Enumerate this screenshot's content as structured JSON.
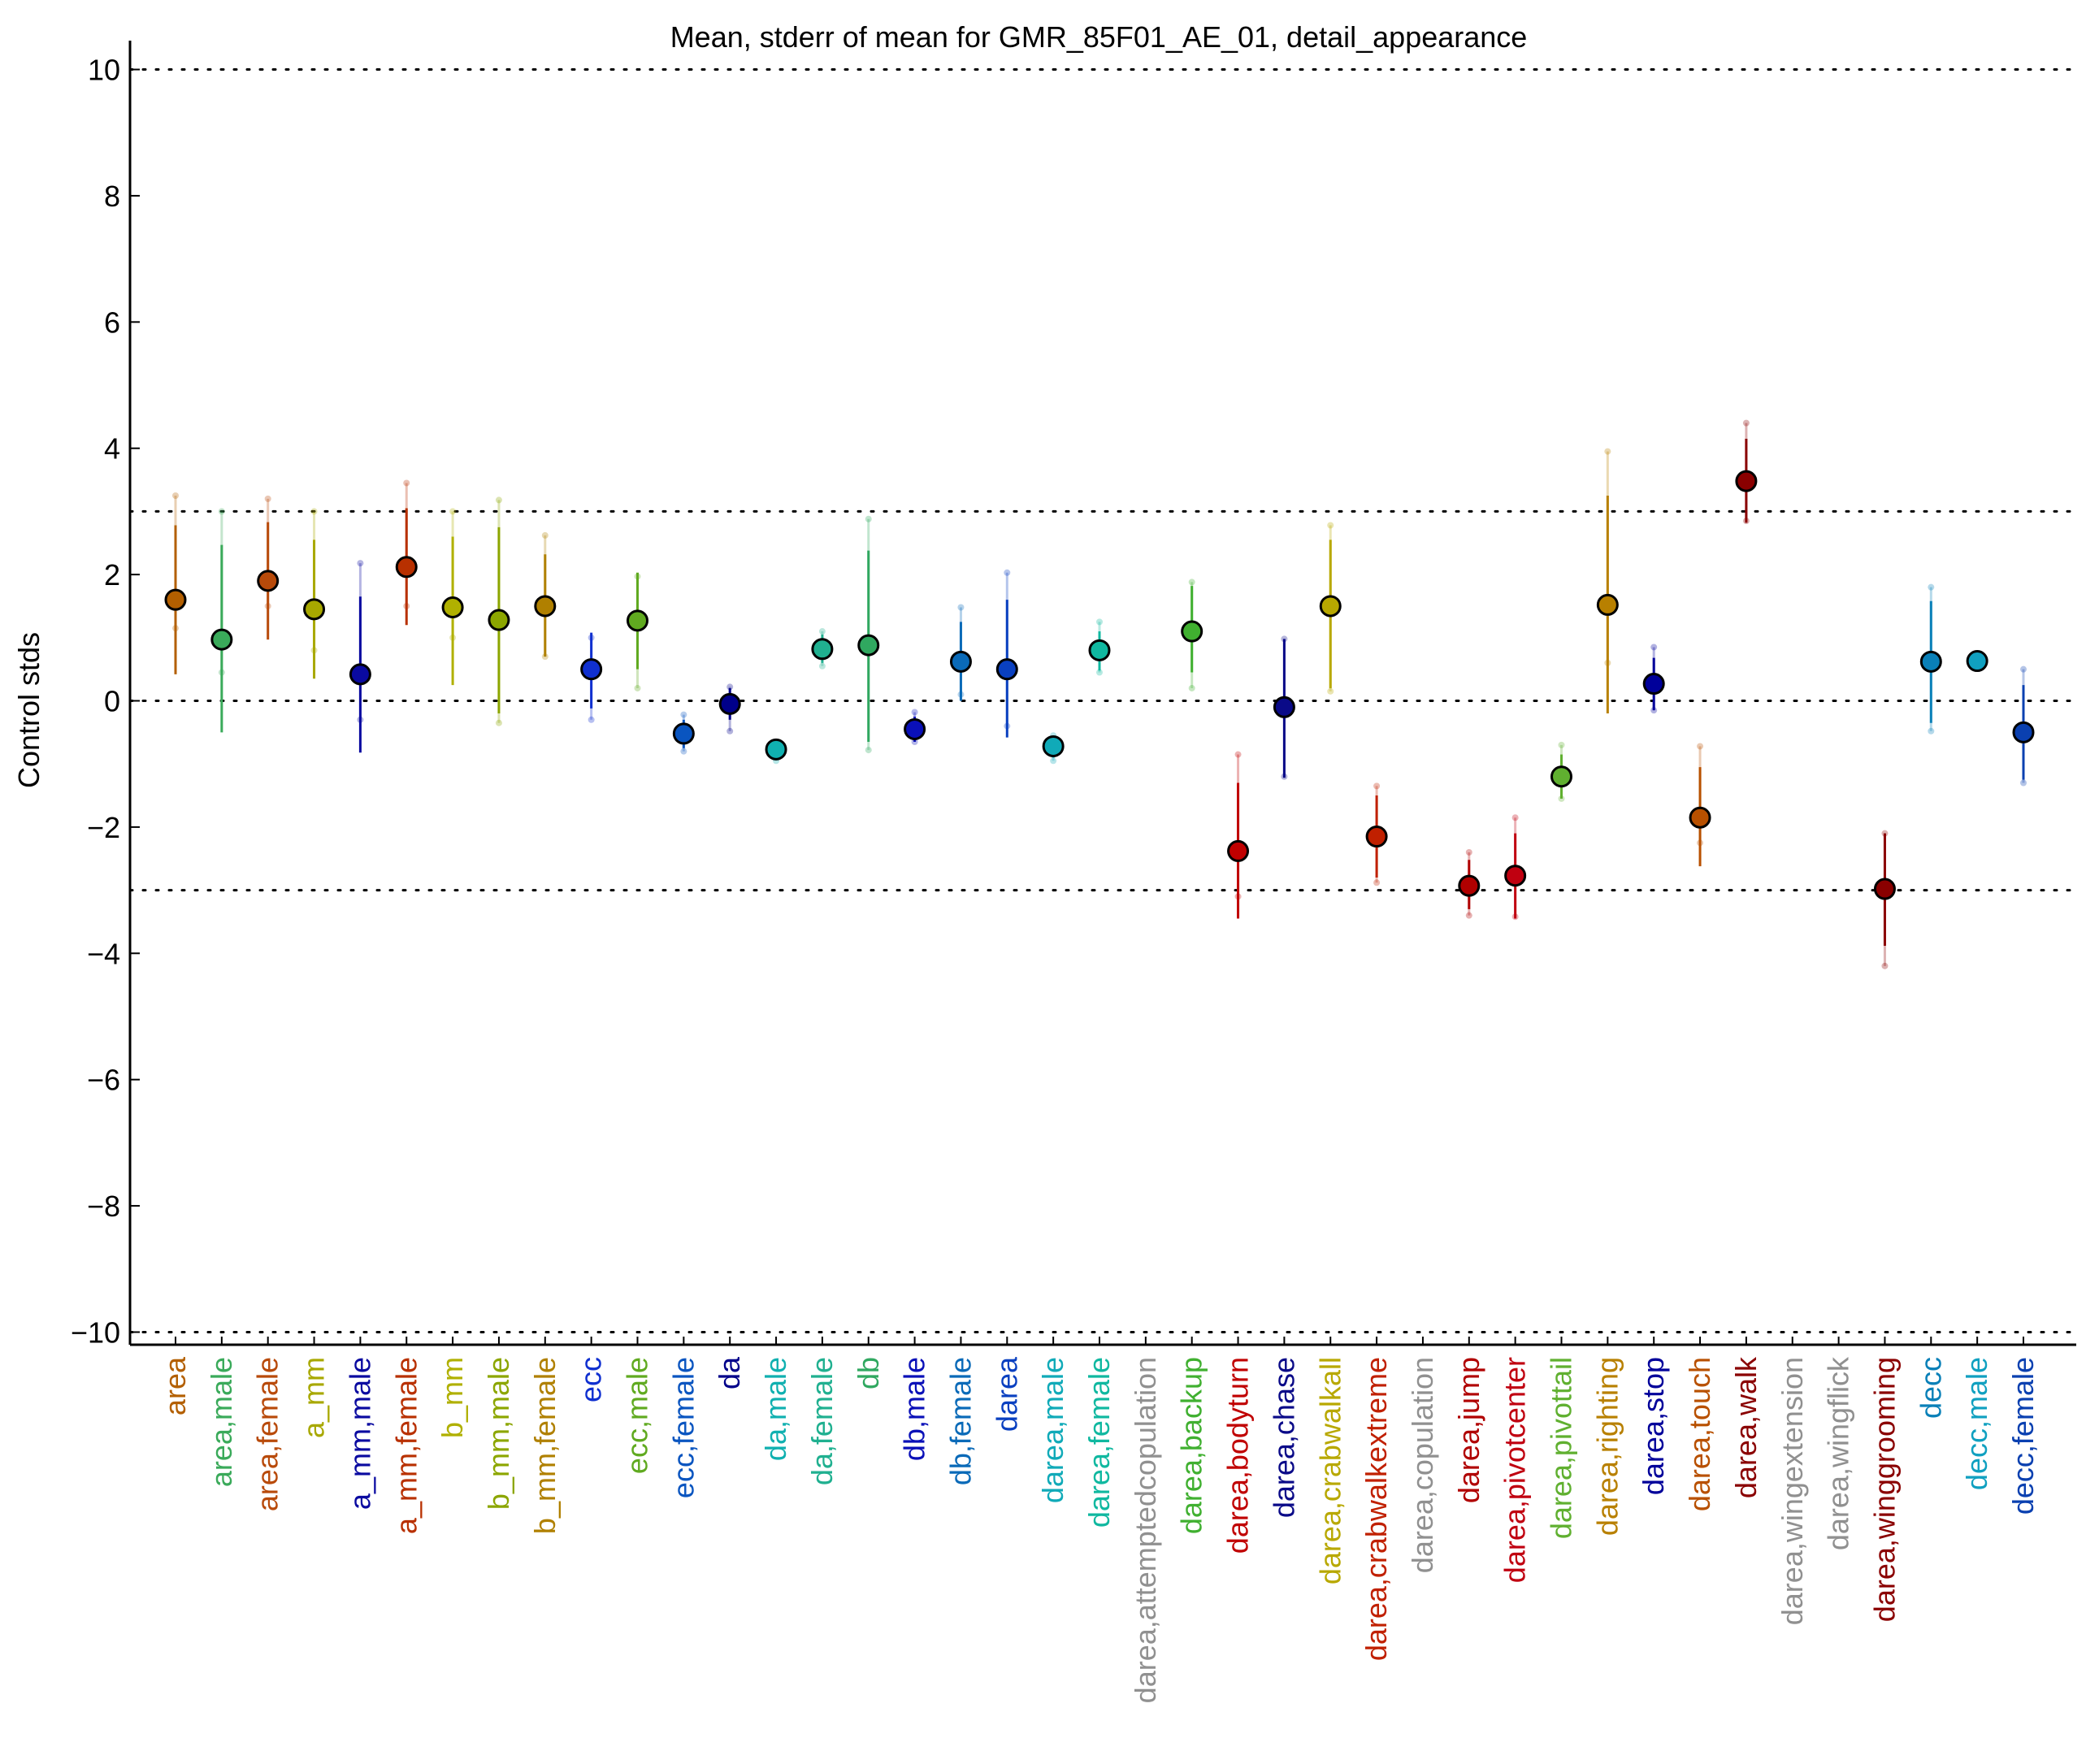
{
  "chart_data": {
    "type": "scatter",
    "title": "Mean, stderr of mean for GMR_85F01_AE_01, detail_appearance",
    "xlabel": "",
    "ylabel": "Control stds",
    "ylim": [
      -10.2,
      10.2
    ],
    "yticks": [
      10,
      8,
      6,
      4,
      2,
      0,
      -2,
      -4,
      -6,
      -8,
      -10
    ],
    "ytick_labels": [
      "10",
      "8",
      "6",
      "4",
      "2",
      "0",
      "−2",
      "−4",
      "−6",
      "−8",
      "−10"
    ],
    "reference_lines": [
      10,
      3,
      0,
      -3,
      -10
    ],
    "grid": false,
    "legend": "none",
    "error_bars": "stderr of mean",
    "categories": [
      {
        "label": "area",
        "color": "#b35f00",
        "mean": 1.6,
        "err_low": 0.42,
        "err_high": 2.78,
        "extra_low": 1.15,
        "extra_high": 3.25
      },
      {
        "label": "area,male",
        "color": "#3aaa5a",
        "mean": 0.97,
        "err_low": -0.5,
        "err_high": 2.47,
        "extra_low": 0.45,
        "extra_high": 3.0
      },
      {
        "label": "area,female",
        "color": "#b84a0a",
        "mean": 1.9,
        "err_low": 0.97,
        "err_high": 2.83,
        "extra_low": 1.5,
        "extra_high": 3.2
      },
      {
        "label": "a_mm",
        "color": "#a8a800",
        "mean": 1.45,
        "err_low": 0.35,
        "err_high": 2.55,
        "extra_low": 0.8,
        "extra_high": 3.0
      },
      {
        "label": "a_mm,male",
        "color": "#0a0aa0",
        "mean": 0.42,
        "err_low": -0.82,
        "err_high": 1.65,
        "extra_low": -0.3,
        "extra_high": 2.18
      },
      {
        "label": "a_mm,female",
        "color": "#b83000",
        "mean": 2.12,
        "err_low": 1.2,
        "err_high": 3.05,
        "extra_low": 1.5,
        "extra_high": 3.45
      },
      {
        "label": "b_mm",
        "color": "#b0b000",
        "mean": 1.48,
        "err_low": 0.25,
        "err_high": 2.6,
        "extra_low": 1.0,
        "extra_high": 3.0
      },
      {
        "label": "b_mm,male",
        "color": "#8ca600",
        "mean": 1.28,
        "err_low": -0.2,
        "err_high": 2.75,
        "extra_low": -0.35,
        "extra_high": 3.18
      },
      {
        "label": "b_mm,female",
        "color": "#b08000",
        "mean": 1.5,
        "err_low": 0.7,
        "err_high": 2.32,
        "extra_low": 0.7,
        "extra_high": 2.62
      },
      {
        "label": "ecc",
        "color": "#1030d0",
        "mean": 0.5,
        "err_low": -0.12,
        "err_high": 1.08,
        "extra_low": -0.3,
        "extra_high": 1.0
      },
      {
        "label": "ecc,male",
        "color": "#60aa20",
        "mean": 1.27,
        "err_low": 0.5,
        "err_high": 2.03,
        "extra_low": 0.2,
        "extra_high": 1.97
      },
      {
        "label": "ecc,female",
        "color": "#0a55c0",
        "mean": -0.52,
        "err_low": -0.75,
        "err_high": -0.3,
        "extra_low": -0.8,
        "extra_high": -0.22
      },
      {
        "label": "da",
        "color": "#00008a",
        "mean": -0.05,
        "err_low": -0.3,
        "err_high": 0.2,
        "extra_low": -0.48,
        "extra_high": 0.22
      },
      {
        "label": "da,male",
        "color": "#10b0b0",
        "mean": -0.77,
        "err_low": -0.85,
        "err_high": -0.7,
        "extra_low": -0.95,
        "extra_high": -0.65
      },
      {
        "label": "da,female",
        "color": "#20b090",
        "mean": 0.82,
        "err_low": 0.6,
        "err_high": 1.05,
        "extra_low": 0.55,
        "extra_high": 1.1
      },
      {
        "label": "db",
        "color": "#30a860",
        "mean": 0.88,
        "err_low": -0.65,
        "err_high": 2.38,
        "extra_low": -0.78,
        "extra_high": 2.88
      },
      {
        "label": "db,male",
        "color": "#0a10b8",
        "mean": -0.45,
        "err_low": -0.65,
        "err_high": -0.25,
        "extra_low": -0.65,
        "extra_high": -0.18
      },
      {
        "label": "db,female",
        "color": "#0a6ab8",
        "mean": 0.62,
        "err_low": 0.0,
        "err_high": 1.25,
        "extra_low": 0.1,
        "extra_high": 1.48
      },
      {
        "label": "darea",
        "color": "#0a40c0",
        "mean": 0.5,
        "err_low": -0.58,
        "err_high": 1.6,
        "extra_low": -0.4,
        "extra_high": 2.03
      },
      {
        "label": "darea,male",
        "color": "#10aab8",
        "mean": -0.72,
        "err_low": -0.9,
        "err_high": -0.55,
        "extra_low": -0.95,
        "extra_high": -0.55
      },
      {
        "label": "darea,female",
        "color": "#10b8a0",
        "mean": 0.8,
        "err_low": 0.48,
        "err_high": 1.1,
        "extra_low": 0.45,
        "extra_high": 1.25
      },
      {
        "label": "darea,attemptedcopulation",
        "color": "#909090",
        "mean": null,
        "err_low": null,
        "err_high": null,
        "extra_low": null,
        "extra_high": null
      },
      {
        "label": "darea,backup",
        "color": "#40b030",
        "mean": 1.1,
        "err_low": 0.45,
        "err_high": 1.82,
        "extra_low": 0.2,
        "extra_high": 1.88
      },
      {
        "label": "darea,bodyturn",
        "color": "#c00000",
        "mean": -2.38,
        "err_low": -3.45,
        "err_high": -1.3,
        "extra_low": -3.1,
        "extra_high": -0.85
      },
      {
        "label": "darea,chase",
        "color": "#0a0a88",
        "mean": -0.1,
        "err_low": -1.22,
        "err_high": 0.98,
        "extra_low": -1.2,
        "extra_high": 0.98
      },
      {
        "label": "darea,crabwalkall",
        "color": "#b8a800",
        "mean": 1.5,
        "err_low": 0.2,
        "err_high": 2.55,
        "extra_low": 0.15,
        "extra_high": 2.78
      },
      {
        "label": "darea,crabwalkextreme",
        "color": "#c02000",
        "mean": -2.15,
        "err_low": -2.8,
        "err_high": -1.5,
        "extra_low": -2.88,
        "extra_high": -1.35
      },
      {
        "label": "darea,copulation",
        "color": "#909090",
        "mean": null,
        "err_low": null,
        "err_high": null,
        "extra_low": null,
        "extra_high": null
      },
      {
        "label": "darea,jump",
        "color": "#b00000",
        "mean": -2.93,
        "err_low": -3.3,
        "err_high": -2.52,
        "extra_low": -3.4,
        "extra_high": -2.4
      },
      {
        "label": "darea,pivotcenter",
        "color": "#c00010",
        "mean": -2.77,
        "err_low": -3.45,
        "err_high": -2.1,
        "extra_low": -3.42,
        "extra_high": -1.85
      },
      {
        "label": "darea,pivottail",
        "color": "#60b030",
        "mean": -1.2,
        "err_low": -1.55,
        "err_high": -0.85,
        "extra_low": -1.55,
        "extra_high": -0.7
      },
      {
        "label": "darea,righting",
        "color": "#b88000",
        "mean": 1.52,
        "err_low": -0.2,
        "err_high": 3.25,
        "extra_low": 0.6,
        "extra_high": 3.95
      },
      {
        "label": "darea,stop",
        "color": "#00009a",
        "mean": 0.27,
        "err_low": -0.15,
        "err_high": 0.68,
        "extra_low": -0.15,
        "extra_high": 0.85
      },
      {
        "label": "darea,touch",
        "color": "#b85000",
        "mean": -1.85,
        "err_low": -2.62,
        "err_high": -1.05,
        "extra_low": -2.25,
        "extra_high": -0.72
      },
      {
        "label": "darea,walk",
        "color": "#8a0000",
        "mean": 3.48,
        "err_low": 2.82,
        "err_high": 4.15,
        "extra_low": 2.85,
        "extra_high": 4.4
      },
      {
        "label": "darea,wingextension",
        "color": "#909090",
        "mean": null,
        "err_low": null,
        "err_high": null,
        "extra_low": null,
        "extra_high": null
      },
      {
        "label": "darea,wingflick",
        "color": "#909090",
        "mean": null,
        "err_low": null,
        "err_high": null,
        "extra_low": null,
        "extra_high": null
      },
      {
        "label": "darea,winggrooming",
        "color": "#8a0000",
        "mean": -2.98,
        "err_low": -3.88,
        "err_high": -2.1,
        "extra_low": -4.2,
        "extra_high": -2.1
      },
      {
        "label": "decc",
        "color": "#0a80b8",
        "mean": 0.62,
        "err_low": -0.35,
        "err_high": 1.58,
        "extra_low": -0.48,
        "extra_high": 1.8
      },
      {
        "label": "decc,male",
        "color": "#10a0c0",
        "mean": 0.63,
        "err_low": 0.63,
        "err_high": 0.63,
        "extra_low": 0.63,
        "extra_high": 0.63
      },
      {
        "label": "decc,female",
        "color": "#0a40b0",
        "mean": -0.5,
        "err_low": -1.25,
        "err_high": 0.25,
        "extra_low": -1.3,
        "extra_high": 0.5
      }
    ]
  }
}
